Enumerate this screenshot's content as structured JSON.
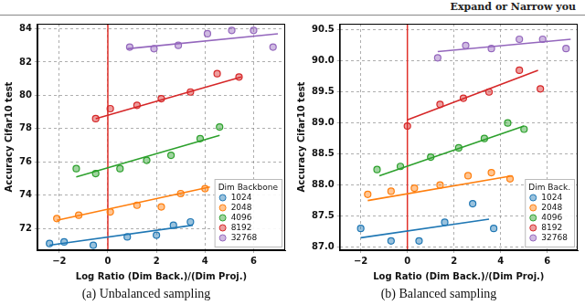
{
  "header": {
    "title": "Expand or Narrow you"
  },
  "chart_data": [
    {
      "type": "scatter",
      "caption": "(a) Unbalanced sampling",
      "x_label": "Log Ratio (Dim Back.)/(Dim Proj.)",
      "y_label": "Accuracy Cifar10 test",
      "xlim": [
        -2.9,
        7.3
      ],
      "xticks": [
        {
          "value": -2,
          "label": "−2"
        },
        0,
        2,
        4,
        6
      ],
      "ylim": [
        70.7,
        84.3
      ],
      "yticks": [
        72,
        74,
        76,
        78,
        80,
        82,
        84
      ],
      "grid": true,
      "legend": "lower right",
      "legend_title": "Dim Backbone",
      "marker": "circle",
      "vline": {
        "x": 0,
        "color": "#e0302a"
      },
      "series": [
        {
          "name": "1024",
          "color": "#1f77b4",
          "x": [
            -2.4,
            -1.8,
            -0.6,
            0.8,
            2.0,
            2.7,
            3.4
          ],
          "values": [
            71.1,
            71.2,
            71.0,
            71.5,
            71.6,
            72.2,
            72.4
          ],
          "fit": {
            "x": [
              -2.4,
              3.5
            ],
            "values": [
              71.0,
              72.2
            ]
          }
        },
        {
          "name": "2048",
          "color": "#ff7f0e",
          "x": [
            -2.1,
            -1.2,
            0.1,
            1.2,
            2.2,
            3.0,
            4.0
          ],
          "values": [
            72.6,
            72.8,
            73.0,
            73.4,
            73.3,
            74.1,
            74.4
          ],
          "fit": {
            "x": [
              -2.1,
              4.2
            ],
            "values": [
              72.5,
              74.5
            ]
          }
        },
        {
          "name": "4096",
          "color": "#2ca02c",
          "x": [
            -1.3,
            -0.5,
            0.5,
            1.6,
            2.6,
            3.8,
            4.6
          ],
          "values": [
            75.6,
            75.3,
            75.6,
            76.1,
            76.4,
            77.4,
            78.1
          ],
          "fit": {
            "x": [
              -1.3,
              4.6
            ],
            "values": [
              75.1,
              77.6
            ]
          }
        },
        {
          "name": "8192",
          "color": "#d62728",
          "x": [
            -0.5,
            0.1,
            1.2,
            2.2,
            3.4,
            4.5,
            5.4
          ],
          "values": [
            78.6,
            79.2,
            79.4,
            79.8,
            80.2,
            81.3,
            81.1
          ],
          "fit": {
            "x": [
              -0.5,
              5.5
            ],
            "values": [
              78.6,
              81.1
            ]
          }
        },
        {
          "name": "32768",
          "color": "#9467bd",
          "x": [
            0.9,
            1.9,
            2.9,
            4.1,
            5.1,
            6.0,
            6.8
          ],
          "values": [
            82.9,
            82.8,
            83.0,
            83.7,
            83.9,
            83.9,
            82.9
          ],
          "fit": {
            "x": [
              0.8,
              7.0
            ],
            "values": [
              82.8,
              83.7
            ]
          }
        }
      ]
    },
    {
      "type": "scatter",
      "caption": "(b) Balanced sampling",
      "x_label": "Log Ratio (Dim Back.)/(Dim Proj.)",
      "y_label": "Accuracy Cifar10 test",
      "xlim": [
        -2.9,
        7.3
      ],
      "xticks": [
        {
          "value": -2,
          "label": "−2"
        },
        0,
        2,
        4,
        6
      ],
      "ylim": [
        86.95,
        90.6
      ],
      "yticks": [
        {
          "value": 87,
          "label": "87.0"
        },
        87.5,
        {
          "value": 88,
          "label": "88.0"
        },
        88.5,
        {
          "value": 89,
          "label": "89.0"
        },
        89.5,
        {
          "value": 90,
          "label": "90.0"
        },
        90.5
      ],
      "grid": true,
      "legend": "lower right",
      "legend_title": "Dim Back.",
      "marker": "circle",
      "vline": {
        "x": 0,
        "color": "#e0302a"
      },
      "series": [
        {
          "name": "1024",
          "color": "#1f77b4",
          "x": [
            -2.0,
            -0.7,
            0.5,
            1.6,
            2.8,
            3.7
          ],
          "values": [
            87.3,
            87.1,
            87.1,
            87.4,
            87.7,
            87.3
          ],
          "fit": {
            "x": [
              -2.0,
              3.5
            ],
            "values": [
              87.15,
              87.45
            ]
          }
        },
        {
          "name": "2048",
          "color": "#ff7f0e",
          "x": [
            -1.7,
            -0.7,
            0.3,
            1.4,
            2.6,
            3.6,
            4.4
          ],
          "values": [
            87.85,
            87.9,
            87.95,
            88.0,
            88.15,
            88.2,
            88.1
          ],
          "fit": {
            "x": [
              -1.7,
              4.5
            ],
            "values": [
              87.75,
              88.15
            ]
          }
        },
        {
          "name": "4096",
          "color": "#2ca02c",
          "x": [
            -1.3,
            -0.3,
            1.0,
            2.2,
            3.3,
            4.3,
            5.0
          ],
          "values": [
            88.25,
            88.3,
            88.45,
            88.6,
            88.75,
            89.0,
            88.9
          ],
          "fit": {
            "x": [
              -1.2,
              5.0
            ],
            "values": [
              88.15,
              88.95
            ]
          }
        },
        {
          "name": "8192",
          "color": "#d62728",
          "x": [
            0.0,
            1.4,
            2.4,
            3.5,
            4.8,
            5.7
          ],
          "values": [
            88.95,
            89.3,
            89.4,
            89.5,
            89.85,
            89.55
          ],
          "fit": {
            "x": [
              0.0,
              5.6
            ],
            "values": [
              89.05,
              89.85
            ]
          }
        },
        {
          "name": "32768",
          "color": "#9467bd",
          "x": [
            1.3,
            2.5,
            3.6,
            4.8,
            5.8,
            6.8
          ],
          "values": [
            90.05,
            90.25,
            90.2,
            90.35,
            90.35,
            90.2
          ],
          "fit": {
            "x": [
              1.3,
              7.0
            ],
            "values": [
              90.15,
              90.35
            ]
          }
        }
      ]
    }
  ]
}
